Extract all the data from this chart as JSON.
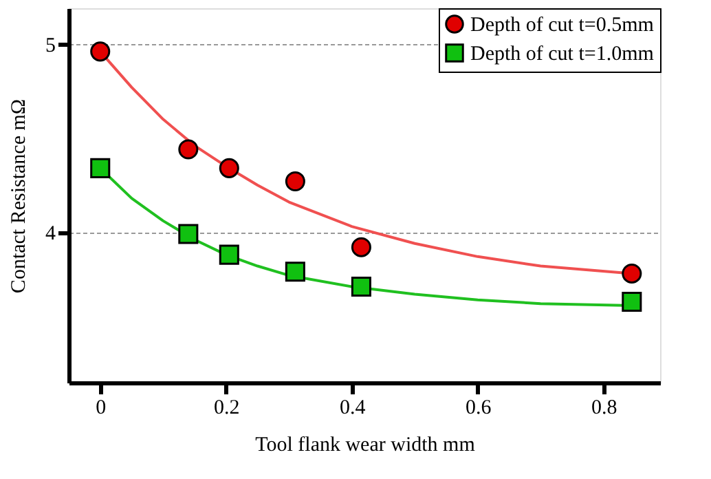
{
  "chart_data": {
    "type": "scatter",
    "xlabel": "Tool flank wear width    mm",
    "ylabel": "Contact Resistance    mΩ",
    "xlim": [
      -0.05,
      0.89
    ],
    "xticks": [
      0,
      0.2,
      0.4,
      0.6,
      0.8
    ],
    "ylim": [
      3.2,
      5.19
    ],
    "yticks": [
      4,
      5
    ],
    "grid": "y",
    "legend": "top right",
    "series": [
      {
        "type": "line",
        "color": "#f05050",
        "marker": "none",
        "x": [
          0,
          0.05,
          0.1,
          0.15,
          0.2,
          0.25,
          0.3,
          0.4,
          0.5,
          0.6,
          0.7,
          0.845
        ],
        "values": [
          4.96,
          4.77,
          4.6,
          4.46,
          4.35,
          4.25,
          4.16,
          4.03,
          3.94,
          3.87,
          3.82,
          3.78
        ]
      },
      {
        "type": "line",
        "color": "#20c020",
        "marker": "none",
        "x": [
          0,
          0.05,
          0.1,
          0.15,
          0.2,
          0.25,
          0.3,
          0.4,
          0.5,
          0.6,
          0.7,
          0.845
        ],
        "values": [
          4.34,
          4.18,
          4.06,
          3.96,
          3.88,
          3.82,
          3.77,
          3.71,
          3.67,
          3.64,
          3.62,
          3.61
        ]
      },
      {
        "name": "Depth of cut t=0.5mm",
        "color": "#e00000",
        "marker": "circle",
        "x": [
          0,
          0.14,
          0.205,
          0.31,
          0.415,
          0.845
        ],
        "values": [
          4.96,
          4.44,
          4.34,
          4.27,
          3.92,
          3.78
        ]
      },
      {
        "name": "Depth of cut t=1.0mm",
        "color": "#10c010",
        "marker": "square",
        "x": [
          0,
          0.14,
          0.205,
          0.31,
          0.415,
          0.845
        ],
        "values": [
          4.34,
          3.99,
          3.88,
          3.79,
          3.71,
          3.63
        ]
      }
    ]
  }
}
